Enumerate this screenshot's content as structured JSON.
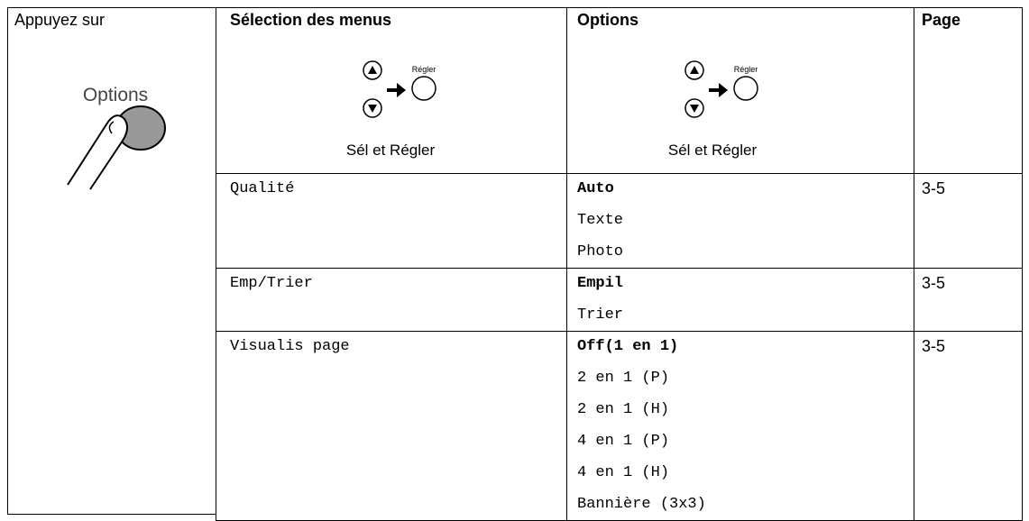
{
  "header": {
    "press": "Appuyez sur",
    "button": "Options",
    "menu_selection": "Sélection des menus",
    "options": "Options",
    "page": "Page",
    "menu_nav": {
      "button_label": "Régler",
      "caption": "Sél et Régler"
    },
    "options_nav": {
      "button_label": "Régler",
      "caption": "Sél et Régler"
    }
  },
  "table": {
    "rows": [
      {
        "menu": "Qualité",
        "options": [
          "Auto",
          "Texte",
          "Photo"
        ],
        "page": "3-5"
      },
      {
        "menu": "Emp/Trier",
        "options": [
          "Empil",
          "Trier"
        ],
        "page": "3-5"
      },
      {
        "menu": "Visualis page",
        "options": [
          "Off(1 en 1)",
          "2 en 1 (P)",
          "2 en 1 (H)",
          "4 en 1 (P)",
          "4 en 1 (H)",
          "Bannière (3x3)"
        ],
        "page": "3-5"
      }
    ]
  }
}
